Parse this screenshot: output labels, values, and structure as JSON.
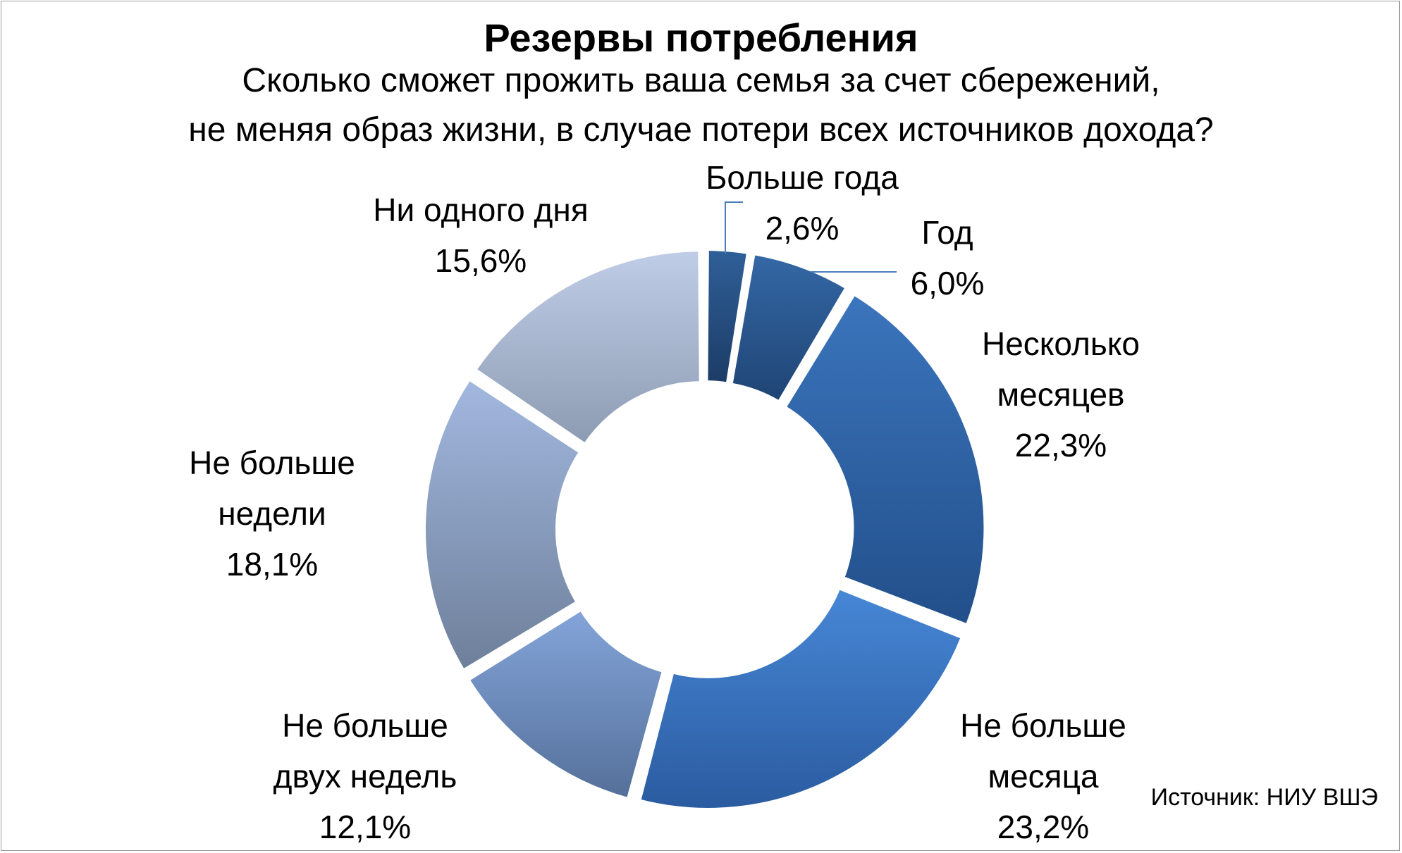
{
  "chart_data": {
    "type": "donut",
    "title": "Резервы потребления",
    "subtitle_lines": [
      "Сколько сможет прожить ваша семья за счет сбережений,",
      "не меняя образ жизни, в случае потери всех источников дохода?"
    ],
    "slices": [
      {
        "label_lines": [
          "Больше года"
        ],
        "value": 2.6,
        "value_label": "2,6%",
        "color_light": "#2f5f98",
        "color_dark": "#1c3c66"
      },
      {
        "label_lines": [
          "Год"
        ],
        "value": 6.0,
        "value_label": "6,0%",
        "color_light": "#3468a6",
        "color_dark": "#1f4474"
      },
      {
        "label_lines": [
          "Несколько",
          "месяцев"
        ],
        "value": 22.3,
        "value_label": "22,3%",
        "color_light": "#3b75bd",
        "color_dark": "#224f8a"
      },
      {
        "label_lines": [
          "Не больше",
          "месяца"
        ],
        "value": 23.2,
        "value_label": "23,2%",
        "color_light": "#4787d6",
        "color_dark": "#2a5ba0"
      },
      {
        "label_lines": [
          "Не больше",
          "двух недель"
        ],
        "value": 12.1,
        "value_label": "12,1%",
        "color_light": "#84a5da",
        "color_dark": "#546f99"
      },
      {
        "label_lines": [
          "Не больше",
          "недели"
        ],
        "value": 18.1,
        "value_label": "18,1%",
        "color_light": "#a3b8e0",
        "color_dark": "#6d7f99"
      },
      {
        "label_lines": [
          "Ни одного дня"
        ],
        "value": 15.6,
        "value_label": "15,6%",
        "color_light": "#c0cde7",
        "color_dark": "#8c9bb2"
      }
    ],
    "source": "Источник: НИУ ВШЭ",
    "legend": "none"
  }
}
